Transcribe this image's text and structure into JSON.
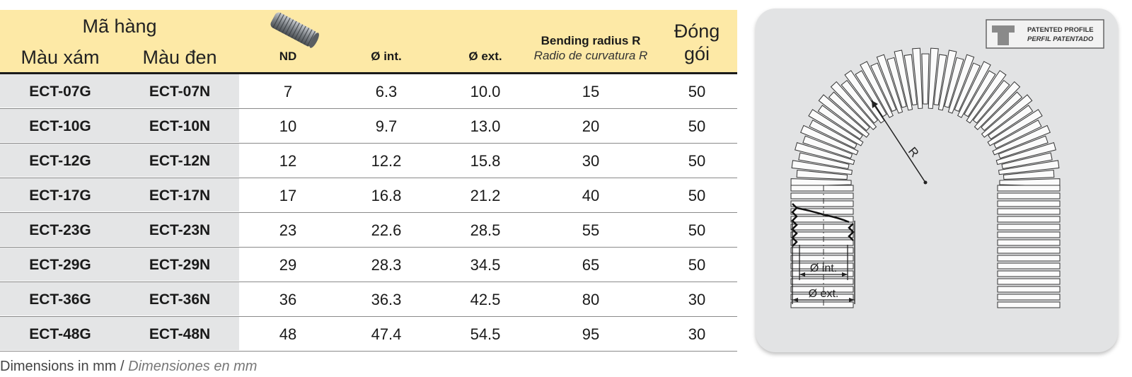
{
  "table": {
    "header": {
      "code_group": "Mã hàng",
      "grey": "Màu xám",
      "black": "Màu đen",
      "nd": "ND",
      "int": "Ø int.",
      "ext": "Ø ext.",
      "bending": "Bending radius R",
      "bending_es": "Radio de curvatura R",
      "packing_1": "Đóng",
      "packing_2": "gói"
    },
    "rows": [
      {
        "grey": "ECT-07G",
        "black": "ECT-07N",
        "nd": "7",
        "int": "6.3",
        "ext": "10.0",
        "bend": "15",
        "pack": "50"
      },
      {
        "grey": "ECT-10G",
        "black": "ECT-10N",
        "nd": "10",
        "int": "9.7",
        "ext": "13.0",
        "bend": "20",
        "pack": "50"
      },
      {
        "grey": "ECT-12G",
        "black": "ECT-12N",
        "nd": "12",
        "int": "12.2",
        "ext": "15.8",
        "bend": "30",
        "pack": "50"
      },
      {
        "grey": "ECT-17G",
        "black": "ECT-17N",
        "nd": "17",
        "int": "16.8",
        "ext": "21.2",
        "bend": "40",
        "pack": "50"
      },
      {
        "grey": "ECT-23G",
        "black": "ECT-23N",
        "nd": "23",
        "int": "22.6",
        "ext": "28.5",
        "bend": "55",
        "pack": "50"
      },
      {
        "grey": "ECT-29G",
        "black": "ECT-29N",
        "nd": "29",
        "int": "28.3",
        "ext": "34.5",
        "bend": "65",
        "pack": "50"
      },
      {
        "grey": "ECT-36G",
        "black": "ECT-36N",
        "nd": "36",
        "int": "36.3",
        "ext": "42.5",
        "bend": "80",
        "pack": "30"
      },
      {
        "grey": "ECT-48G",
        "black": "ECT-48N",
        "nd": "48",
        "int": "47.4",
        "ext": "54.5",
        "bend": "95",
        "pack": "30"
      }
    ]
  },
  "footer": {
    "en": "Dimensions in mm / ",
    "es": "Dimensiones en mm"
  },
  "diagram": {
    "badge_line1": "PATENTED PROFILE",
    "badge_line2": "PERFIL PATENTADO",
    "radius_label": "R",
    "int_label": "Ø int.",
    "ext_label": "Ø ext."
  },
  "colors": {
    "header_bg": "#fde9a6",
    "code_col_bg": "#e4e5e6",
    "panel_bg": "#e2e3e4"
  }
}
